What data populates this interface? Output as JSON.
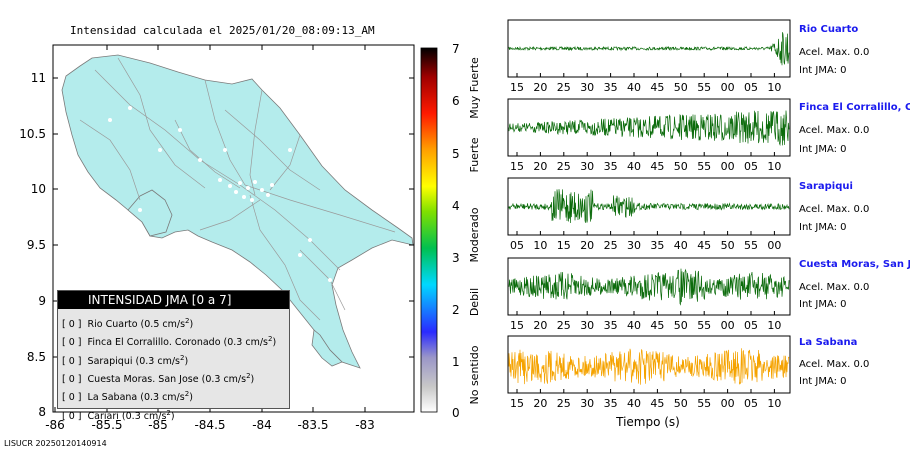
{
  "map": {
    "title": "Intensidad calculada el 2025/01/20_08:09:13_AM",
    "lat_ticks": [
      "11",
      "10.5",
      "10",
      "9.5",
      "9",
      "8.5",
      "8"
    ],
    "lon_ticks": [
      "-86",
      "-85.5",
      "-85",
      "-84.5",
      "-84",
      "-83.5",
      "-83"
    ]
  },
  "colorbar": {
    "ticks": [
      "7",
      "6",
      "5",
      "4",
      "3",
      "2",
      "1",
      "0"
    ],
    "levels": [
      "Muy Fuerte",
      "Fuerte",
      "Moderado",
      "Debil",
      "No sentido"
    ]
  },
  "legend": {
    "header": "INTENSIDAD JMA [0 a 7]",
    "rows": [
      {
        "value": "[ 0 ]",
        "station": "Rio Cuarto (0.5 cm/s",
        "exp": "2",
        "close": ")"
      },
      {
        "value": "[ 0 ]",
        "station": "Finca El Corralillo. Coronado (0.3 cm/s",
        "exp": "2",
        "close": ")"
      },
      {
        "value": "[ 0 ]",
        "station": "Sarapiqui (0.3 cm/s",
        "exp": "2",
        "close": ")"
      },
      {
        "value": "[ 0 ]",
        "station": "Cuesta Moras. San Jose (0.3 cm/s",
        "exp": "2",
        "close": ")"
      },
      {
        "value": "[ 0 ]",
        "station": "La Sabana (0.3 cm/s",
        "exp": "2",
        "close": ")"
      },
      {
        "value": "[ 0 ]",
        "station": "Cariari (0.3 cm/s",
        "exp": "2",
        "close": ")"
      }
    ]
  },
  "waveforms": [
    {
      "name": "Rio Cuarto",
      "acel": "Acel. Max. 0.0",
      "int": "Int JMA: 0",
      "color": "#0b6b0b",
      "ticks": [
        "15",
        "20",
        "25",
        "30",
        "35",
        "40",
        "45",
        "50",
        "55",
        "00",
        "05",
        "10"
      ]
    },
    {
      "name": "Finca El Corralillo, Coronado",
      "acel": "Acel. Max. 0.0",
      "int": "Int JMA: 0",
      "color": "#0b6b0b",
      "ticks": [
        "15",
        "20",
        "25",
        "30",
        "35",
        "40",
        "45",
        "50",
        "55",
        "00",
        "05",
        "10"
      ]
    },
    {
      "name": "Sarapiqui",
      "acel": "Acel. Max. 0.0",
      "int": "Int JMA: 0",
      "color": "#0b6b0b",
      "ticks": [
        "05",
        "10",
        "15",
        "20",
        "25",
        "30",
        "35",
        "40",
        "45",
        "50",
        "55",
        "00"
      ]
    },
    {
      "name": "Cuesta Moras, San Jose",
      "acel": "Acel. Max. 0.0",
      "int": "Int JMA: 0",
      "color": "#0b6b0b",
      "ticks": [
        "15",
        "20",
        "25",
        "30",
        "35",
        "40",
        "45",
        "50",
        "55",
        "00",
        "05",
        "10"
      ]
    },
    {
      "name": "La Sabana",
      "acel": "Acel. Max. 0.0",
      "int": "Int JMA: 0",
      "color": "#f5a300",
      "ticks": [
        "15",
        "20",
        "25",
        "30",
        "35",
        "40",
        "45",
        "50",
        "55",
        "00",
        "05",
        "10"
      ]
    }
  ],
  "time_axis_label": "Tiempo (s)",
  "footer": "LISUCR 20250120140914"
}
